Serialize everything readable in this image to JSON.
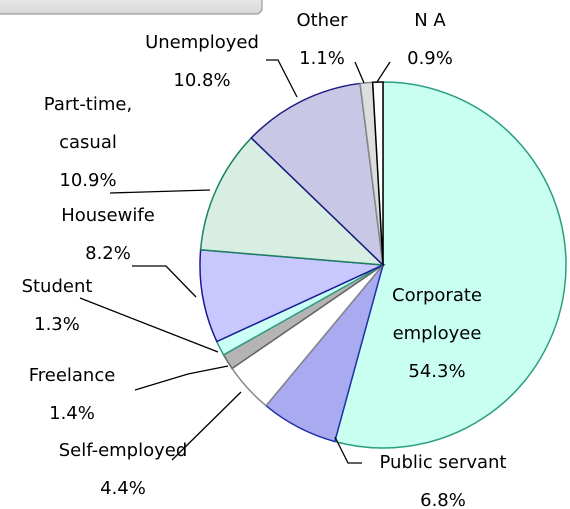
{
  "chart_data": {
    "type": "pie",
    "categories": [
      "Corporate employee",
      "Public servant",
      "Self-employed",
      "Freelance",
      "Student",
      "Housewife",
      "Part-time, casual",
      "Unemployed",
      "Other",
      "N A"
    ],
    "values": [
      54.3,
      6.8,
      4.4,
      1.4,
      1.3,
      8.2,
      10.9,
      10.8,
      1.1,
      0.9
    ],
    "value_labels": [
      "54.3%",
      "6.8%",
      "4.4%",
      "1.4%",
      "1.3%",
      "8.2%",
      "10.9%",
      "10.8%",
      "1.1%",
      "0.9%"
    ],
    "colors": [
      "#c9fff0",
      "#aaaaf0",
      "#ffffff",
      "#b4b4b4",
      "#ccfff5",
      "#c8c8ff",
      "#d8eee2",
      "#c8c8e6",
      "#dddddd",
      "#ffffff"
    ]
  }
}
